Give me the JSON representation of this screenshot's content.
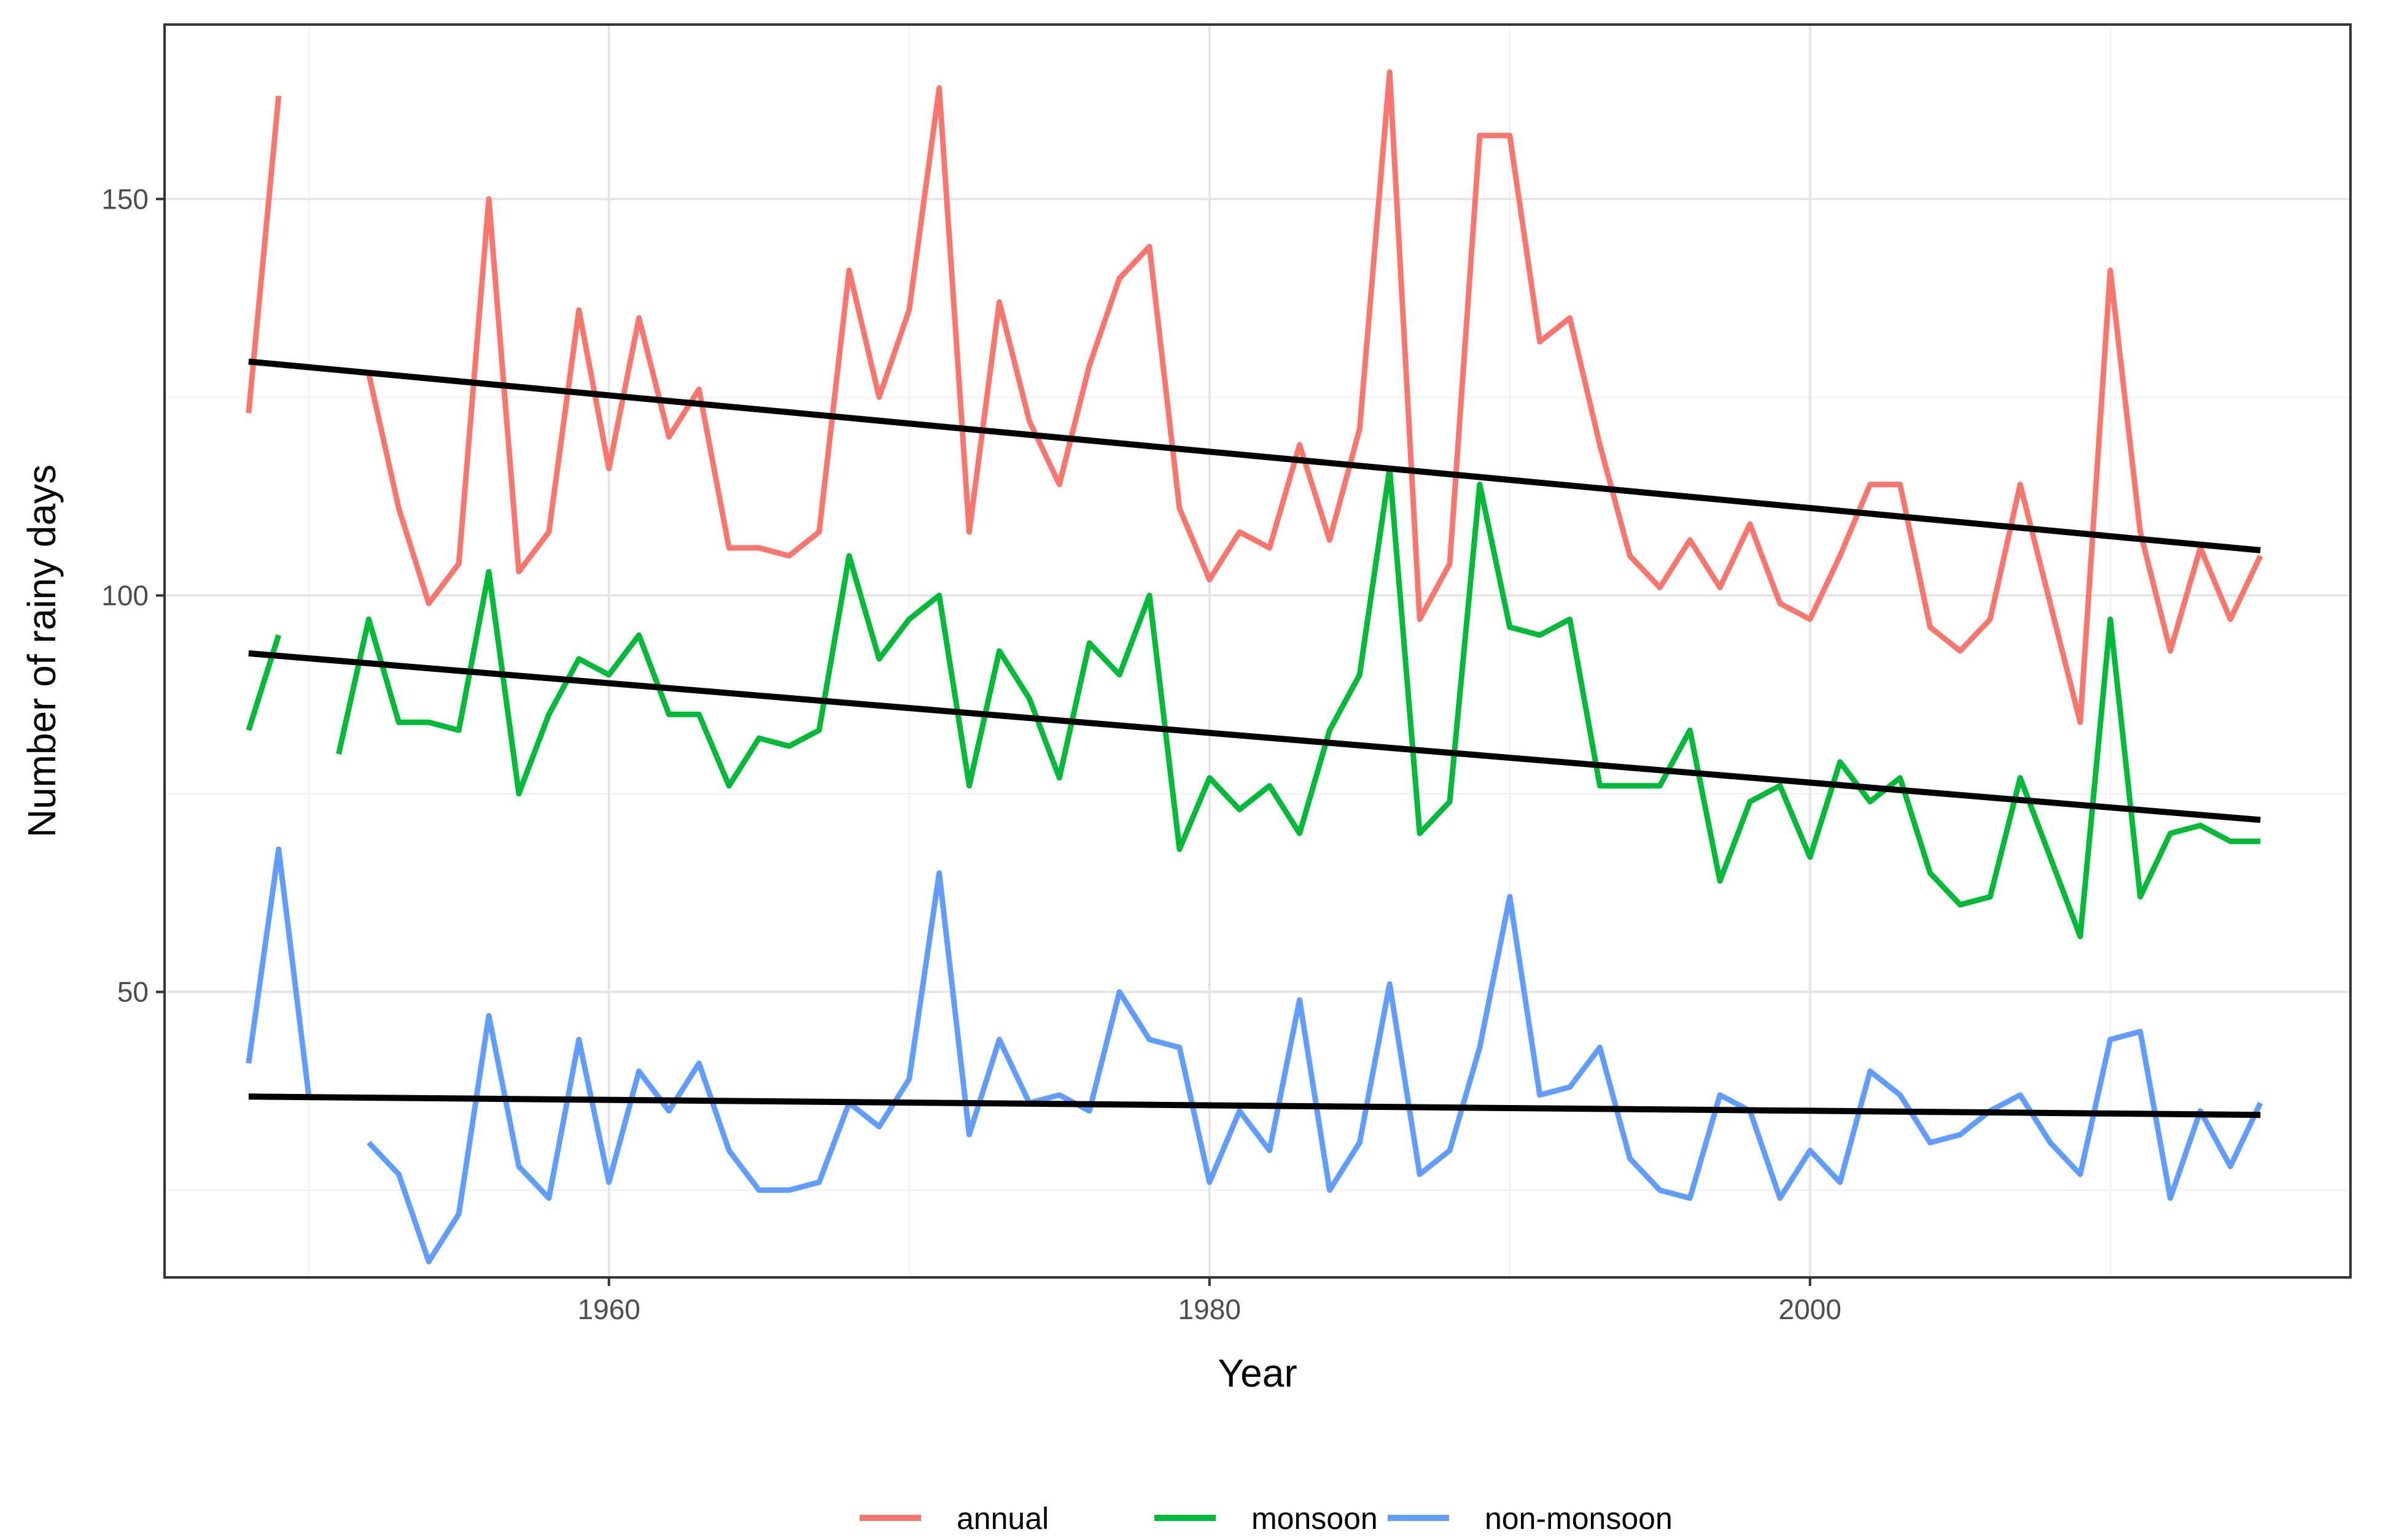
{
  "chart_data": {
    "type": "line",
    "title": "",
    "xlabel": "Year",
    "ylabel": "Number of rainy days",
    "xlim": [
      1945.2,
      2018.0
    ],
    "ylim": [
      14,
      172
    ],
    "x_ticks": [
      1960,
      1980,
      2000
    ],
    "y_ticks": [
      50,
      100,
      150
    ],
    "x_tick_labels": [
      "1960",
      "1980",
      "2000"
    ],
    "y_tick_labels": [
      "50",
      "100",
      "150"
    ],
    "grid": true,
    "legend_position": "bottom",
    "x": [
      1948,
      1949,
      1950,
      1951,
      1952,
      1953,
      1954,
      1955,
      1956,
      1957,
      1958,
      1959,
      1960,
      1961,
      1962,
      1963,
      1964,
      1965,
      1966,
      1967,
      1968,
      1969,
      1970,
      1971,
      1972,
      1973,
      1974,
      1975,
      1976,
      1977,
      1978,
      1979,
      1980,
      1981,
      1982,
      1983,
      1984,
      1985,
      1986,
      1987,
      1988,
      1989,
      1990,
      1991,
      1992,
      1993,
      1994,
      1995,
      1996,
      1997,
      1998,
      1999,
      2000,
      2001,
      2002,
      2003,
      2004,
      2005,
      2006,
      2007,
      2008,
      2009,
      2010,
      2011,
      2012,
      2013,
      2014,
      2015
    ],
    "series": [
      {
        "name": "annual",
        "color": "#F8766D",
        "values": [
          123,
          163,
          null,
          null,
          128,
          111,
          99,
          104,
          150,
          103,
          108,
          136,
          116,
          135,
          120,
          126,
          106,
          106,
          105,
          108,
          141,
          125,
          136,
          164,
          108,
          137,
          122,
          114,
          129,
          140,
          144,
          111,
          102,
          108,
          106,
          119,
          107,
          121,
          166,
          97,
          104,
          158,
          158,
          132,
          135,
          119,
          105,
          101,
          107,
          101,
          109,
          99,
          97,
          105,
          114,
          114,
          96,
          93,
          97,
          114,
          99,
          84,
          141,
          108,
          93,
          106,
          97,
          105
        ]
      },
      {
        "name": "monsoon",
        "color": "#00BA38",
        "values": [
          83,
          95,
          null,
          80,
          97,
          84,
          84,
          83,
          103,
          75,
          85,
          92,
          90,
          95,
          85,
          85,
          76,
          82,
          81,
          83,
          105,
          92,
          97,
          100,
          76,
          93,
          87,
          77,
          94,
          90,
          100,
          68,
          77,
          73,
          76,
          70,
          83,
          90,
          116,
          70,
          74,
          114,
          96,
          95,
          97,
          76,
          76,
          76,
          83,
          64,
          74,
          76,
          67,
          79,
          74,
          77,
          65,
          61,
          62,
          77,
          67,
          57,
          97,
          62,
          70,
          71,
          69,
          69
        ]
      },
      {
        "name": "non-monsoon",
        "color": "#619CFF",
        "values": [
          41,
          68,
          37,
          null,
          31,
          27,
          16,
          22,
          47,
          28,
          24,
          44,
          26,
          40,
          35,
          41,
          30,
          25,
          25,
          26,
          36,
          33,
          39,
          65,
          32,
          44,
          36,
          37,
          35,
          50,
          44,
          43,
          26,
          35,
          30,
          49,
          25,
          31,
          51,
          27,
          30,
          43,
          62,
          37,
          38,
          43,
          29,
          25,
          24,
          37,
          35,
          24,
          30,
          26,
          40,
          37,
          31,
          32,
          35,
          37,
          31,
          27,
          44,
          45,
          24,
          35,
          28,
          36
        ]
      },
      {
        "name": "annual trend",
        "color": "#000000",
        "x": [
          1948,
          2015
        ],
        "values": [
          129.5,
          105.7
        ]
      },
      {
        "name": "monsoon trend",
        "color": "#000000",
        "x": [
          1948,
          2015
        ],
        "values": [
          92.7,
          71.7
        ]
      },
      {
        "name": "non-monsoon trend",
        "color": "#000000",
        "x": [
          1948,
          2015
        ],
        "values": [
          36.8,
          34.5
        ]
      }
    ],
    "legend": [
      "annual",
      "monsoon",
      "non-monsoon"
    ]
  }
}
